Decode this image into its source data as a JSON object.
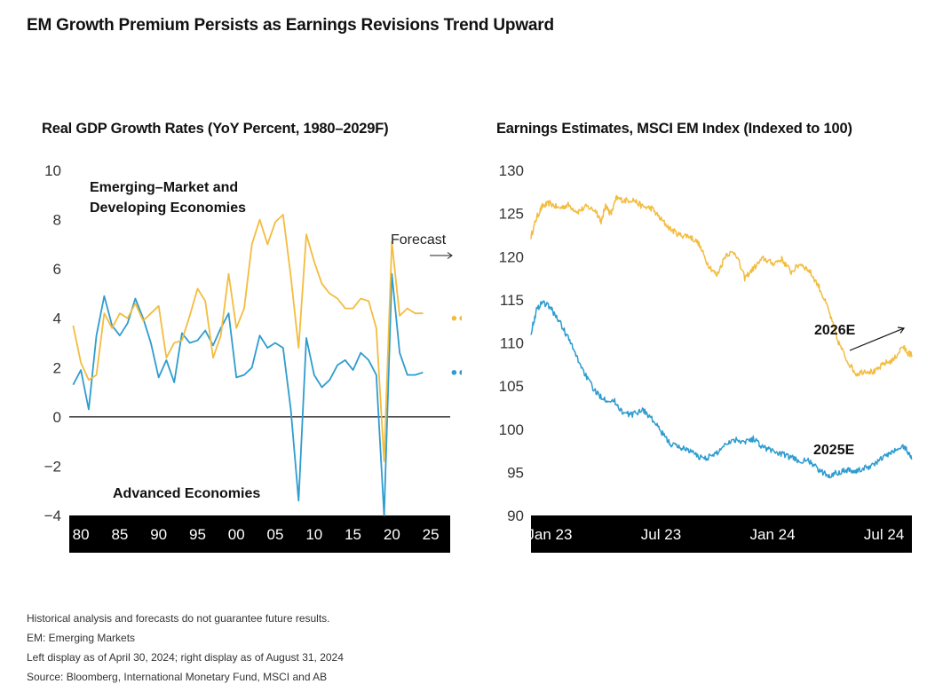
{
  "title": "EM Growth Premium Persists as Earnings Revisions Trend Upward",
  "colors": {
    "em": "#f3bc3f",
    "adv": "#2e9ccf",
    "axis_band": "#000000"
  },
  "chart_data": [
    {
      "type": "line",
      "title": "Real GDP Growth Rates (YoY Percent, 1980–2029F)",
      "ylim": [
        -4,
        10
      ],
      "yticks": [
        "10",
        "8",
        "6",
        "4",
        "2",
        "0",
        "−2",
        "−4"
      ],
      "xlim": [
        1978.5,
        2027.5
      ],
      "xticks": [
        {
          "year": 1980,
          "label": "80"
        },
        {
          "year": 1985,
          "label": "85"
        },
        {
          "year": 1990,
          "label": "90"
        },
        {
          "year": 1995,
          "label": "95"
        },
        {
          "year": 2000,
          "label": "00"
        },
        {
          "year": 2005,
          "label": "05"
        },
        {
          "year": 2010,
          "label": "10"
        },
        {
          "year": 2015,
          "label": "15"
        },
        {
          "year": 2020,
          "label": "20"
        },
        {
          "year": 2025,
          "label": "25"
        }
      ],
      "x": [
        1979,
        1980,
        1981,
        1982,
        1983,
        1984,
        1985,
        1986,
        1987,
        1988,
        1989,
        1990,
        1991,
        1992,
        1993,
        1994,
        1995,
        1996,
        1997,
        1998,
        1999,
        2000,
        2001,
        2002,
        2003,
        2004,
        2005,
        2006,
        2007,
        2008,
        2009,
        2010,
        2011,
        2012,
        2013,
        2014,
        2015,
        2016,
        2017,
        2018,
        2019,
        2020,
        2021,
        2022,
        2023,
        2024
      ],
      "series": [
        {
          "name": "Emerging–Market and Developing Economies",
          "color_key": "em",
          "values": [
            3.7,
            2.2,
            1.5,
            1.7,
            4.2,
            3.6,
            4.2,
            4.0,
            4.6,
            3.9,
            4.2,
            4.5,
            2.4,
            3.0,
            3.1,
            4.1,
            5.2,
            4.7,
            2.4,
            3.3,
            5.8,
            3.6,
            4.4,
            7.0,
            8.0,
            7.0,
            7.9,
            8.2,
            5.7,
            2.8,
            7.4,
            6.3,
            5.4,
            5.0,
            4.8,
            4.4,
            4.4,
            4.8,
            4.7,
            3.6,
            -1.8,
            7.1,
            4.1,
            4.4,
            4.2,
            4.2
          ],
          "forecast_x": [
            2028,
            2029
          ],
          "forecast_values": [
            4.0,
            4.0
          ]
        },
        {
          "name": "Advanced Economies",
          "color_key": "adv",
          "values": [
            1.3,
            1.9,
            0.3,
            3.3,
            4.9,
            3.7,
            3.3,
            3.8,
            4.8,
            4.0,
            3.0,
            1.6,
            2.3,
            1.4,
            3.4,
            3.0,
            3.1,
            3.5,
            2.9,
            3.6,
            4.2,
            1.6,
            1.7,
            2.0,
            3.3,
            2.8,
            3.0,
            2.8,
            0.3,
            -3.4,
            3.2,
            1.7,
            1.2,
            1.5,
            2.1,
            2.3,
            1.9,
            2.6,
            2.3,
            1.7,
            -4.0,
            5.8,
            2.6,
            1.7,
            1.7,
            1.8
          ],
          "forecast_x": [
            2028,
            2029
          ],
          "forecast_values": [
            1.8,
            1.8
          ]
        }
      ],
      "annotations": [
        {
          "text": "Emerging–Market and",
          "line": 1
        },
        {
          "text": "Developing Economies",
          "line": 2
        },
        {
          "text": "Advanced Economies"
        },
        {
          "text": "Forecast"
        }
      ]
    },
    {
      "type": "line",
      "title": "Earnings Estimates, MSCI EM Index (Indexed to 100)",
      "ylim": [
        90,
        130
      ],
      "yticks": [
        "130",
        "125",
        "120",
        "115",
        "110",
        "105",
        "100",
        "95",
        "90"
      ],
      "x_unit": "month (0 = Dec 2022)",
      "xlim": [
        0,
        20.5
      ],
      "xticks": [
        {
          "month": 1.0,
          "label": "Jan 23"
        },
        {
          "month": 7.0,
          "label": "Jul 23"
        },
        {
          "month": 13.0,
          "label": "Jan 24"
        },
        {
          "month": 19.0,
          "label": "Jul 24"
        }
      ],
      "series": [
        {
          "name": "2026E",
          "color_key": "em",
          "points": [
            [
              0,
              122.3
            ],
            [
              0.3,
              124.5
            ],
            [
              0.6,
              125.8
            ],
            [
              1.0,
              126.2
            ],
            [
              1.5,
              125.6
            ],
            [
              2.0,
              126.0
            ],
            [
              2.5,
              125.2
            ],
            [
              3.0,
              125.8
            ],
            [
              3.5,
              125.3
            ],
            [
              3.8,
              124.0
            ],
            [
              4.0,
              126.0
            ],
            [
              4.3,
              124.9
            ],
            [
              4.6,
              126.8
            ],
            [
              5.0,
              126.5
            ],
            [
              5.5,
              126.6
            ],
            [
              6.0,
              125.8
            ],
            [
              6.5,
              125.6
            ],
            [
              7.0,
              124.3
            ],
            [
              7.5,
              123.2
            ],
            [
              8.0,
              122.5
            ],
            [
              8.5,
              122.4
            ],
            [
              9.0,
              121.6
            ],
            [
              9.5,
              119.2
            ],
            [
              10.0,
              117.8
            ],
            [
              10.5,
              120.3
            ],
            [
              11.0,
              120.5
            ],
            [
              11.5,
              117.5
            ],
            [
              12.0,
              118.7
            ],
            [
              12.5,
              119.8
            ],
            [
              13.0,
              119.2
            ],
            [
              13.5,
              119.7
            ],
            [
              14.0,
              118.2
            ],
            [
              14.5,
              119.2
            ],
            [
              15.0,
              118.3
            ],
            [
              15.5,
              116.5
            ],
            [
              16.0,
              113.9
            ],
            [
              16.5,
              110.3
            ],
            [
              17.0,
              108.0
            ],
            [
              17.5,
              106.4
            ],
            [
              18.0,
              106.8
            ],
            [
              18.5,
              106.6
            ],
            [
              19.0,
              107.6
            ],
            [
              19.5,
              108.0
            ],
            [
              20.0,
              109.6
            ],
            [
              20.3,
              108.8
            ],
            [
              20.5,
              108.6
            ]
          ]
        },
        {
          "name": "2025E",
          "color_key": "adv",
          "points": [
            [
              0,
              111.2
            ],
            [
              0.3,
              113.8
            ],
            [
              0.6,
              114.8
            ],
            [
              1.0,
              114.2
            ],
            [
              1.5,
              112.6
            ],
            [
              2.0,
              110.6
            ],
            [
              2.5,
              108.2
            ],
            [
              3.0,
              106.0
            ],
            [
              3.5,
              104.2
            ],
            [
              4.0,
              103.5
            ],
            [
              4.5,
              103.2
            ],
            [
              5.0,
              101.8
            ],
            [
              5.5,
              101.7
            ],
            [
              6.0,
              102.3
            ],
            [
              6.5,
              101.2
            ],
            [
              7.0,
              99.7
            ],
            [
              7.5,
              98.3
            ],
            [
              8.0,
              97.9
            ],
            [
              8.5,
              97.6
            ],
            [
              9.0,
              96.8
            ],
            [
              9.5,
              96.7
            ],
            [
              10.0,
              97.2
            ],
            [
              10.5,
              98.4
            ],
            [
              11.0,
              98.8
            ],
            [
              11.5,
              98.6
            ],
            [
              12.0,
              98.9
            ],
            [
              12.5,
              97.9
            ],
            [
              13.0,
              97.5
            ],
            [
              13.5,
              97.1
            ],
            [
              14.0,
              96.7
            ],
            [
              14.5,
              96.3
            ],
            [
              15.0,
              96.3
            ],
            [
              15.5,
              95.2
            ],
            [
              16.0,
              94.6
            ],
            [
              16.5,
              95.0
            ],
            [
              17.0,
              95.3
            ],
            [
              17.5,
              95.1
            ],
            [
              18.0,
              95.5
            ],
            [
              18.5,
              96.0
            ],
            [
              19.0,
              96.8
            ],
            [
              19.5,
              97.4
            ],
            [
              20.0,
              98.0
            ],
            [
              20.2,
              97.7
            ],
            [
              20.5,
              96.5
            ]
          ]
        }
      ],
      "annotations": [
        {
          "text": "2026E"
        },
        {
          "text": "2025E"
        }
      ]
    }
  ],
  "footnotes": [
    "Historical analysis and forecasts do not guarantee future results.",
    "EM: Emerging Markets",
    "Left display as of April 30, 2024; right display as of August 31, 2024",
    "Source: Bloomberg, International Monetary Fund, MSCI and AB"
  ]
}
